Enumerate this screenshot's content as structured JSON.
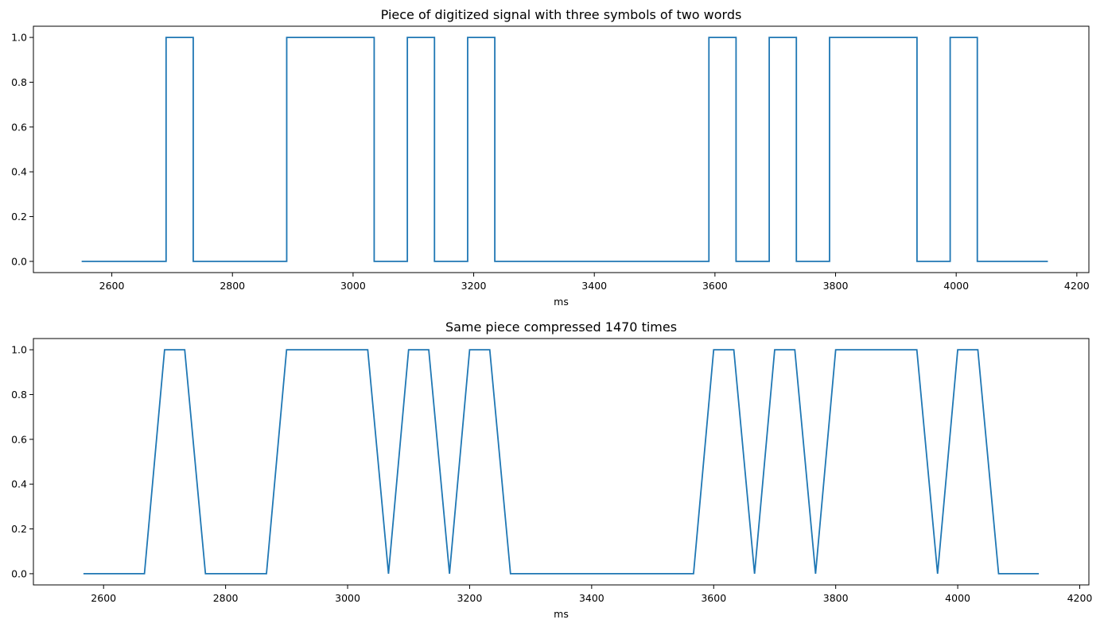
{
  "colors": {
    "line": "#1f77b4",
    "axes": "#000000",
    "background": "#ffffff"
  },
  "chart_data": [
    {
      "type": "line",
      "title": "Piece of digitized signal with three symbols of two words",
      "xlabel": "ms",
      "ylabel": "",
      "xlim": [
        2470,
        4220
      ],
      "ylim": [
        -0.05,
        1.05
      ],
      "xticks": [
        2600,
        2800,
        3000,
        3200,
        3400,
        3600,
        3800,
        4000,
        4200
      ],
      "xtick_labels": [
        "2600",
        "2800",
        "3000",
        "3200",
        "3400",
        "3600",
        "3800",
        "4000",
        "4200"
      ],
      "yticks": [
        0.0,
        0.2,
        0.4,
        0.6,
        0.8,
        1.0
      ],
      "ytick_labels": [
        "0.0",
        "0.2",
        "0.4",
        "0.6",
        "0.8",
        "1.0"
      ],
      "grid": false,
      "legend": "none",
      "series": [
        {
          "x": [
            2550,
            2690,
            2690,
            2735,
            2735,
            2890,
            2890,
            3035,
            3035,
            3090,
            3090,
            3135,
            3135,
            3190,
            3190,
            3235,
            3235,
            3590,
            3590,
            3635,
            3635,
            3690,
            3690,
            3735,
            3735,
            3790,
            3790,
            3935,
            3935,
            3990,
            3990,
            4035,
            4035,
            4152
          ],
          "y": [
            0,
            0,
            1,
            1,
            0,
            0,
            1,
            1,
            0,
            0,
            1,
            1,
            0,
            0,
            1,
            1,
            0,
            0,
            1,
            1,
            0,
            0,
            1,
            1,
            0,
            0,
            1,
            1,
            0,
            0,
            1,
            1,
            0,
            0
          ]
        }
      ]
    },
    {
      "type": "line",
      "title": "Same piece compressed 1470 times",
      "xlabel": "ms",
      "ylabel": "",
      "xlim": [
        2485,
        4215
      ],
      "ylim": [
        -0.05,
        1.05
      ],
      "xticks": [
        2600,
        2800,
        3000,
        3200,
        3400,
        3600,
        3800,
        4000,
        4200
      ],
      "xtick_labels": [
        "2600",
        "2800",
        "3000",
        "3200",
        "3400",
        "3600",
        "3800",
        "4000",
        "4200"
      ],
      "yticks": [
        0.0,
        0.2,
        0.4,
        0.6,
        0.8,
        1.0
      ],
      "ytick_labels": [
        "0.0",
        "0.2",
        "0.4",
        "0.6",
        "0.8",
        "1.0"
      ],
      "grid": false,
      "legend": "none",
      "series": [
        {
          "x": [
            2567,
            2667,
            2700,
            2733,
            2767,
            2867,
            2900,
            3033,
            3067,
            3100,
            3133,
            3167,
            3200,
            3233,
            3267,
            3567,
            3600,
            3633,
            3667,
            3700,
            3733,
            3767,
            3800,
            3933,
            3967,
            4000,
            4033,
            4067,
            4133
          ],
          "y": [
            0,
            0,
            1,
            1,
            0,
            0,
            1,
            1,
            0,
            1,
            1,
            0,
            1,
            1,
            0,
            0,
            1,
            1,
            0,
            1,
            1,
            0,
            1,
            1,
            0,
            1,
            1,
            0,
            0
          ]
        }
      ]
    }
  ]
}
